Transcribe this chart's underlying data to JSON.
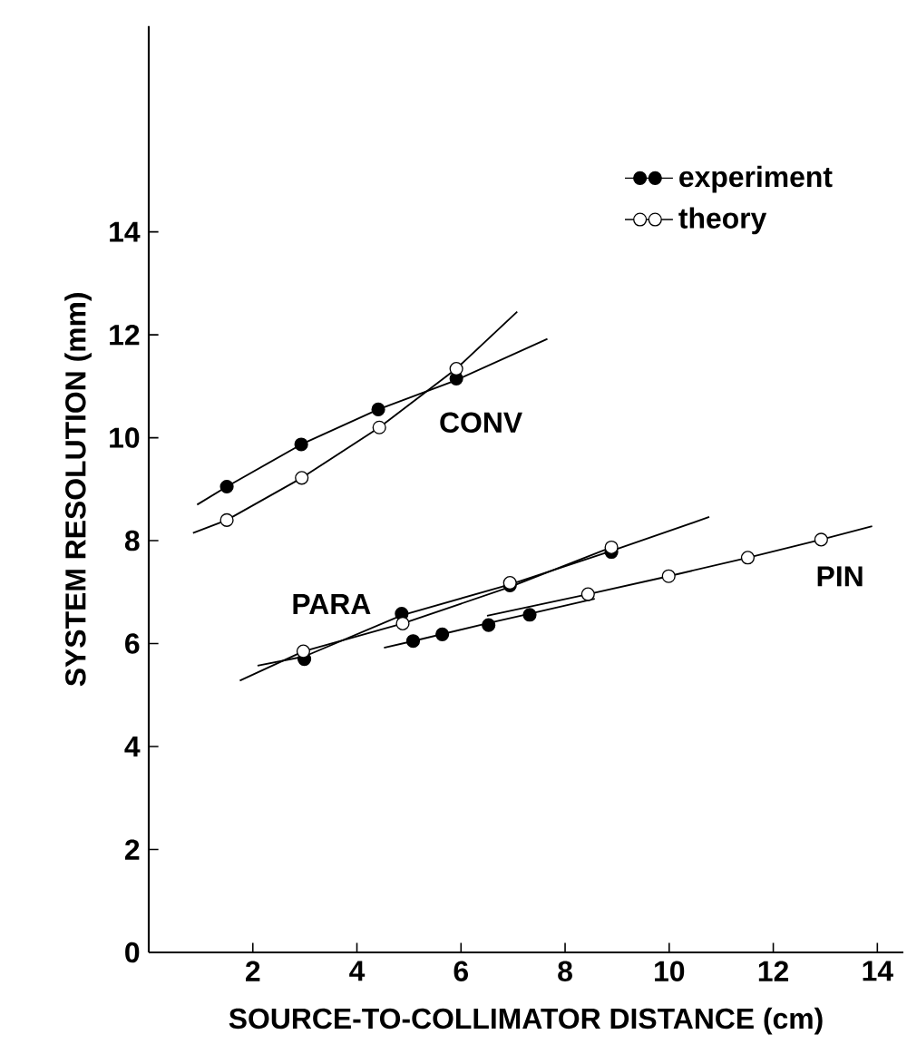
{
  "chart_data": {
    "type": "scatter",
    "xlabel": "SOURCE-TO-COLLIMATOR DISTANCE (cm)",
    "ylabel": "SYSTEM RESOLUTION (mm)",
    "xlim": [
      0,
      14.5
    ],
    "ylim": [
      0,
      18
    ],
    "xticks": [
      2,
      4,
      6,
      8,
      10,
      12,
      14
    ],
    "yticks": [
      0,
      2,
      4,
      6,
      8,
      10,
      12,
      14
    ],
    "legend": "top right",
    "grid": false,
    "series": [
      {
        "name": "experiment",
        "marker": "circle",
        "color": "#000000",
        "x": [
          1.5,
          2.93,
          4.41,
          5.91
        ],
        "values": [
          9.05,
          9.87,
          10.55,
          11.15
        ]
      },
      {
        "name": "theory",
        "marker": "circle",
        "color": "#ffffff",
        "x": [
          1.5,
          2.94,
          4.43,
          5.91
        ],
        "values": [
          8.4,
          9.22,
          10.2,
          11.34
        ]
      },
      {
        "marker": "circle",
        "color": "#000000",
        "x": [
          2.99,
          4.86,
          6.94,
          8.89
        ],
        "values": [
          5.7,
          6.58,
          7.13,
          7.78
        ]
      },
      {
        "marker": "circle",
        "color": "#ffffff",
        "x": [
          2.97,
          4.88,
          6.94,
          8.89
        ],
        "values": [
          5.85,
          6.39,
          7.18,
          7.87
        ]
      },
      {
        "marker": "circle",
        "color": "#000000",
        "x": [
          5.08,
          5.64,
          6.53,
          7.32
        ],
        "values": [
          6.05,
          6.18,
          6.36,
          6.56
        ]
      },
      {
        "marker": "circle",
        "color": "#ffffff",
        "x": [
          8.44,
          9.99,
          11.51,
          12.92
        ],
        "values": [
          6.96,
          7.31,
          7.67,
          8.02
        ]
      },
      {
        "type": "line",
        "marker": "none",
        "color": "#000000",
        "x": [
          0.93,
          1.5,
          2.93,
          4.41,
          5.91,
          7.66
        ],
        "values": [
          8.7,
          9.05,
          9.87,
          10.55,
          11.12,
          11.92
        ]
      },
      {
        "type": "line",
        "marker": "none",
        "color": "#000000",
        "x": [
          0.85,
          1.5,
          2.94,
          4.43,
          5.91,
          7.08
        ],
        "values": [
          8.15,
          8.4,
          9.22,
          10.2,
          11.34,
          12.45
        ]
      },
      {
        "type": "line",
        "marker": "none",
        "color": "#000000",
        "x": [
          2.09,
          2.99,
          4.86,
          6.94,
          8.89,
          10.77
        ],
        "values": [
          5.57,
          5.75,
          6.55,
          7.15,
          7.8,
          8.46
        ]
      },
      {
        "type": "line",
        "marker": "none",
        "color": "#000000",
        "x": [
          1.75,
          2.97,
          4.88,
          6.94,
          8.89
        ],
        "values": [
          5.28,
          5.85,
          6.39,
          7.1,
          7.87
        ]
      },
      {
        "type": "line",
        "marker": "none",
        "color": "#000000",
        "x": [
          4.52,
          5.08,
          6.53,
          7.32,
          8.57
        ],
        "values": [
          5.92,
          6.05,
          6.4,
          6.58,
          6.87
        ]
      },
      {
        "type": "line",
        "marker": "none",
        "color": "#000000",
        "x": [
          6.5,
          8.44,
          9.99,
          11.51,
          12.92,
          13.9
        ],
        "values": [
          6.54,
          6.96,
          7.31,
          7.67,
          8.02,
          8.28
        ]
      }
    ],
    "annotations": [
      "CONV",
      "PARA",
      "PIN"
    ]
  }
}
